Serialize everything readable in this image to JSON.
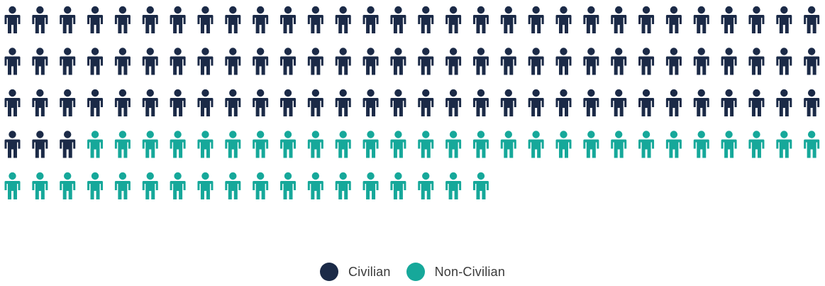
{
  "chart_data": {
    "type": "pictograph",
    "icon": "person-icon",
    "per_row": 30,
    "series": [
      {
        "name": "Civilian",
        "value": 93,
        "color": "#1b2a47"
      },
      {
        "name": "Non-Civilian",
        "value": 45,
        "color": "#16a89a"
      }
    ],
    "legend_position": "bottom-center"
  }
}
